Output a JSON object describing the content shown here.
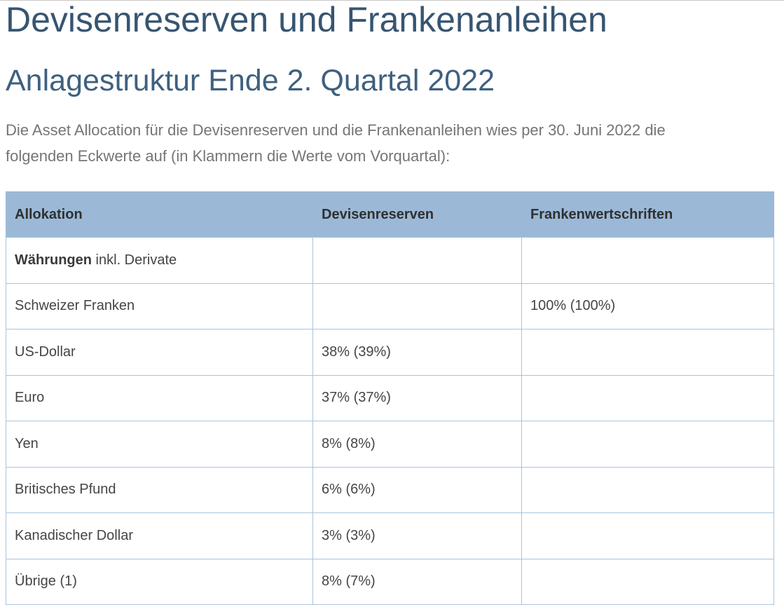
{
  "page": {
    "title": "Devisenreserven und Frankenanleihen",
    "subtitle": "Anlagestruktur Ende 2. Quartal 2022",
    "intro": "Die Asset Allocation für die Devisenreserven und die Frankenanleihen wies per 30. Juni 2022 die folgenden Eckwerte auf (in Klammern die Werte vom Vorquartal):"
  },
  "table": {
    "columns": {
      "allокation_note": "",
      "col1": "Allokation",
      "col2": "Devisenreserven",
      "col3": "Frankenwertschriften"
    },
    "rows": [
      {
        "label_bold": "Währungen",
        "label_rest": " inkl. Derivate",
        "devisenreserven": "",
        "frankenwertschriften": ""
      },
      {
        "label": "Schweizer Franken",
        "devisenreserven": "",
        "frankenwertschriften": "100% (100%)"
      },
      {
        "label": "US-Dollar",
        "devisenreserven": "38% (39%)",
        "frankenwertschriften": ""
      },
      {
        "label": "Euro",
        "devisenreserven": "37% (37%)",
        "frankenwertschriften": ""
      },
      {
        "label": "Yen",
        "devisenreserven": "8% (8%)",
        "frankenwertschriften": ""
      },
      {
        "label": "Britisches Pfund",
        "devisenreserven": "6% (6%)",
        "frankenwertschriften": ""
      },
      {
        "label": "Kanadischer Dollar",
        "devisenreserven": "3% (3%)",
        "frankenwertschriften": ""
      },
      {
        "label": "Übrige (1)",
        "devisenreserven": "8% (7%)",
        "frankenwertschriften": ""
      }
    ]
  },
  "colors": {
    "heading": "#375571",
    "subheading": "#3f6080",
    "body_text": "#757575",
    "table_header_bg": "#9bb9d7",
    "table_border": "#a8c4de",
    "table_header_text": "#303030",
    "table_cell_text": "#454545"
  }
}
